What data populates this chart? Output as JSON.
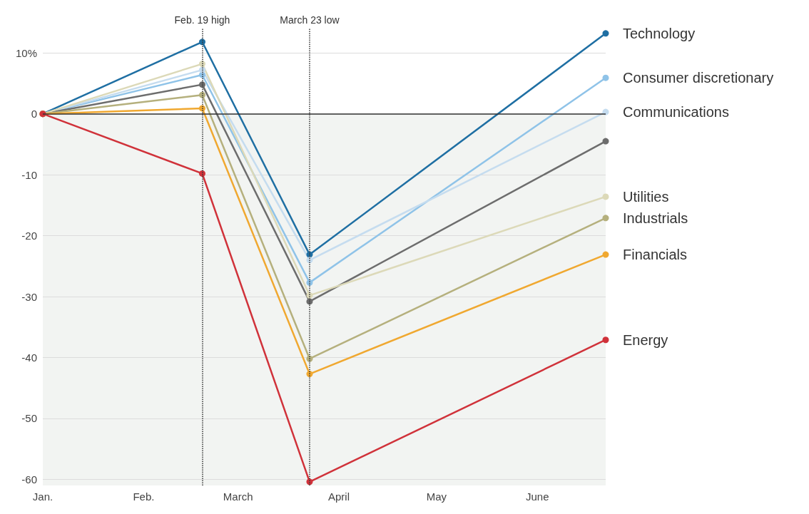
{
  "chart_data": {
    "type": "line",
    "x": [
      "--01-01",
      "--02-19",
      "--03-23",
      "--06-22"
    ],
    "series": [
      {
        "name": "Technology",
        "color": "#1f6fa3",
        "values": [
          0,
          11.8,
          -23.1,
          13.2
        ]
      },
      {
        "name": "Consumer discretionary",
        "color": "#8fc3e8",
        "values": [
          0,
          6.4,
          -27.7,
          5.9
        ]
      },
      {
        "name": "Communications",
        "color": "#c5dcef",
        "values": [
          0,
          7.2,
          -24.0,
          0.3
        ]
      },
      {
        "color": "#6d6d6d",
        "values": [
          0,
          4.8,
          -30.8,
          -4.5
        ]
      },
      {
        "name": "Utilities",
        "color": "#dcd9b8",
        "values": [
          0,
          8.2,
          -29.8,
          -13.6
        ]
      },
      {
        "name": "Industrials",
        "color": "#b5b07d",
        "values": [
          0,
          3.1,
          -40.2,
          -17.1
        ]
      },
      {
        "name": "Financials",
        "color": "#f0a830",
        "values": [
          0,
          0.9,
          -42.7,
          -23.1
        ]
      },
      {
        "name": "Energy",
        "color": "#d0323a",
        "values": [
          0,
          -9.8,
          -60.4,
          -37.1
        ]
      }
    ],
    "xlim": [
      "--01-01",
      "--06-22"
    ],
    "xticks": [
      {
        "value": "--01-01",
        "label": "Jan."
      },
      {
        "value": "--02-01",
        "label": "Feb."
      },
      {
        "value": "--03-01",
        "label": "March"
      },
      {
        "value": "--04-01",
        "label": "April"
      },
      {
        "value": "--05-01",
        "label": "May"
      },
      {
        "value": "--06-01",
        "label": "June"
      }
    ],
    "ylim": [
      -61,
      14
    ],
    "yticks": [
      {
        "value": 10,
        "label": "10%"
      },
      0,
      -10,
      -20,
      -30,
      -40,
      -50,
      -60
    ],
    "ref_lines": [
      {
        "axis": "x",
        "value": "--02-19",
        "label": "Feb. 19 high",
        "line_style": "dotted",
        "color": "#333333"
      },
      {
        "axis": "x",
        "value": "--03-23",
        "label": "March 23 low",
        "line_style": "dotted",
        "color": "#333333"
      },
      {
        "axis": "y",
        "value": 0,
        "color": "#333333",
        "line_style": "solid"
      }
    ],
    "bands": [
      {
        "axis": "y",
        "from": -61,
        "to": 0,
        "color": "#f2f4f2"
      }
    ],
    "grid": "y",
    "legend": false,
    "marker": "circle",
    "line_style": "solid"
  }
}
